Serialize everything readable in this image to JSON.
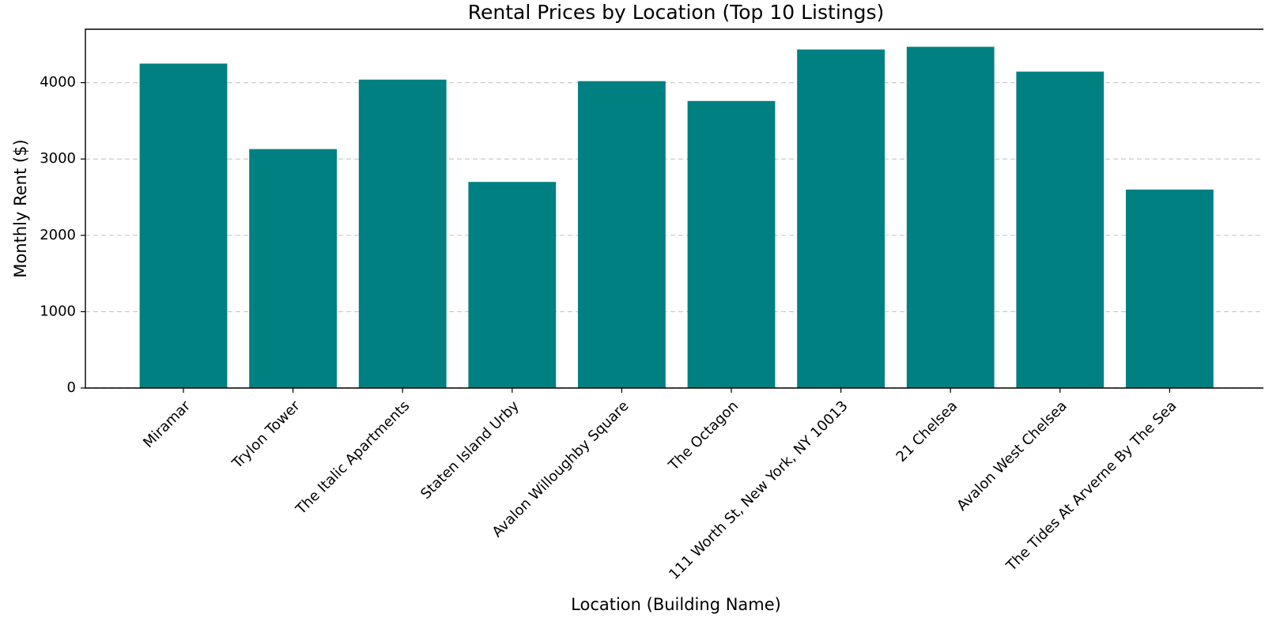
{
  "chart_data": {
    "type": "bar",
    "title": "Rental Prices by Location (Top 10 Listings)",
    "x_label": "Location (Building Name)",
    "y_label": "Monthly Rent ($)",
    "categories": [
      "Miramar",
      "Trylon Tower",
      "The Italic Apartments",
      "Staten Island Urby",
      "Avalon Willoughby Square",
      "The Octagon",
      "111 Worth St, New York, NY 10013",
      "21 Chelsea",
      "Avalon West Chelsea",
      "The Tides At Arverne By The Sea"
    ],
    "values": [
      4250,
      3130,
      4040,
      2700,
      4020,
      3760,
      4435,
      4470,
      4145,
      2600
    ],
    "color": "#008080",
    "ylim": [
      0,
      4700
    ],
    "yticks": [
      0,
      1000,
      2000,
      3000,
      4000
    ],
    "grid": true
  }
}
